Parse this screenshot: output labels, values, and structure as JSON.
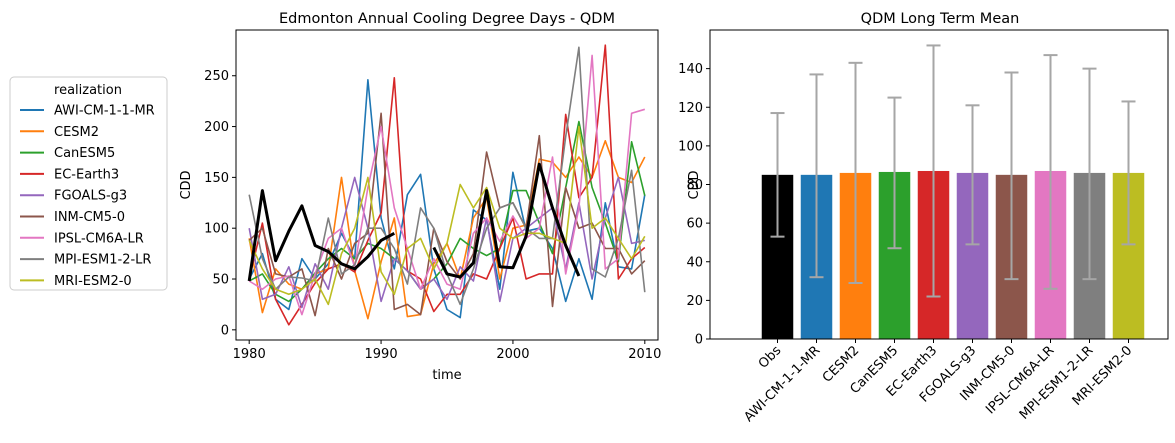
{
  "chart_data": [
    {
      "type": "line",
      "title": "Edmonton Annual Cooling Degree Days - QDM",
      "xlabel": "time",
      "ylabel": "CDD",
      "xlim": [
        1979,
        2011
      ],
      "ylim": [
        -10,
        295
      ],
      "xticks": [
        1980,
        1990,
        2000,
        2010
      ],
      "yticks": [
        0,
        50,
        100,
        150,
        200,
        250
      ],
      "legend": {
        "title": "realization",
        "placement": "left, outside plot"
      },
      "x": [
        1980,
        1981,
        1982,
        1983,
        1984,
        1985,
        1986,
        1987,
        1988,
        1989,
        1990,
        1991,
        1992,
        1993,
        1994,
        1995,
        1996,
        1997,
        1998,
        1999,
        2000,
        2001,
        2002,
        2003,
        2004,
        2005,
        2006,
        2007,
        2008,
        2009,
        2010
      ],
      "observed": {
        "color": "#000000",
        "values": [
          48,
          137,
          68,
          97,
          122,
          83,
          77,
          65,
          60,
          72,
          88,
          95,
          null,
          null,
          81,
          55,
          52,
          66,
          137,
          62,
          61,
          92,
          163,
          120,
          83,
          53,
          null,
          null,
          null,
          null,
          null
        ]
      },
      "series": [
        {
          "name": "AWI-CM-1-1-MR",
          "color": "#1f77b4",
          "values": [
            50,
            75,
            30,
            20,
            70,
            50,
            65,
            95,
            70,
            246,
            110,
            60,
            133,
            153,
            60,
            20,
            12,
            118,
            108,
            40,
            155,
            97,
            100,
            80,
            28,
            70,
            30,
            125,
            62,
            60,
            133
          ]
        },
        {
          "name": "CESM2",
          "color": "#ff7f0e",
          "values": [
            90,
            17,
            60,
            45,
            40,
            55,
            60,
            150,
            58,
            11,
            67,
            110,
            13,
            15,
            65,
            85,
            50,
            110,
            130,
            50,
            100,
            103,
            168,
            165,
            150,
            170,
            150,
            186,
            150,
            145,
            170
          ]
        },
        {
          "name": "CanESM5",
          "color": "#2ca02c",
          "values": [
            48,
            55,
            35,
            28,
            40,
            56,
            70,
            80,
            70,
            85,
            80,
            70,
            58,
            40,
            50,
            65,
            90,
            80,
            73,
            80,
            137,
            137,
            105,
            75,
            140,
            205,
            140,
            105,
            67,
            185,
            132
          ]
        },
        {
          "name": "EC-Earth3",
          "color": "#d62728",
          "values": [
            50,
            105,
            30,
            5,
            25,
            46,
            60,
            65,
            57,
            88,
            115,
            248,
            58,
            50,
            18,
            35,
            35,
            55,
            50,
            80,
            110,
            50,
            55,
            55,
            212,
            130,
            150,
            280,
            50,
            70,
            81
          ]
        },
        {
          "name": "FGOALS-g3",
          "color": "#9467bd",
          "values": [
            100,
            30,
            35,
            62,
            22,
            65,
            40,
            100,
            150,
            100,
            28,
            70,
            58,
            40,
            50,
            30,
            62,
            48,
            110,
            28,
            90,
            100,
            110,
            120,
            60,
            125,
            50,
            110,
            150,
            85,
            88
          ]
        },
        {
          "name": "INM-CM5-0",
          "color": "#8c564b",
          "values": [
            88,
            100,
            55,
            52,
            60,
            14,
            80,
            50,
            85,
            95,
            213,
            20,
            25,
            15,
            100,
            67,
            50,
            75,
            175,
            120,
            125,
            100,
            191,
            23,
            140,
            100,
            105,
            80,
            80,
            55,
            68
          ]
        },
        {
          "name": "IPSL-CM6A-LR",
          "color": "#e377c2",
          "values": [
            48,
            40,
            50,
            53,
            15,
            55,
            90,
            100,
            62,
            140,
            200,
            120,
            80,
            40,
            70,
            45,
            40,
            95,
            110,
            87,
            112,
            90,
            100,
            170,
            55,
            120,
            270,
            60,
            70,
            213,
            217
          ]
        },
        {
          "name": "MPI-ESM1-2-LR",
          "color": "#7f7f7f",
          "values": [
            133,
            70,
            40,
            52,
            51,
            48,
            110,
            55,
            64,
            100,
            100,
            80,
            45,
            120,
            100,
            55,
            25,
            60,
            100,
            120,
            125,
            100,
            90,
            90,
            190,
            278,
            60,
            52,
            90,
            157,
            37
          ]
        },
        {
          "name": "MRI-ESM2-0",
          "color": "#bcbd22",
          "values": [
            88,
            60,
            40,
            35,
            40,
            50,
            25,
            75,
            100,
            150,
            57,
            35,
            80,
            90,
            60,
            85,
            143,
            120,
            140,
            100,
            90,
            95,
            95,
            90,
            85,
            200,
            100,
            110,
            90,
            70,
            92
          ]
        }
      ]
    },
    {
      "type": "bar",
      "title": "QDM Long Term Mean",
      "xlabel": "",
      "ylabel": "CDD",
      "ylim": [
        0,
        160
      ],
      "yticks": [
        0,
        20,
        40,
        60,
        80,
        100,
        120,
        140
      ],
      "categories": [
        "Obs",
        "AWI-CM-1-1-MR",
        "CESM2",
        "CanESM5",
        "EC-Earth3",
        "FGOALS-g3",
        "INM-CM5-0",
        "IPSL-CM6A-LR",
        "MPI-ESM1-2-LR",
        "MRI-ESM2-0"
      ],
      "values": [
        85,
        85,
        86,
        86.5,
        87,
        86,
        85,
        87,
        86,
        86
      ],
      "error_low": [
        53,
        32,
        29,
        47,
        22,
        49,
        31,
        26,
        31,
        49
      ],
      "error_high": [
        117,
        137,
        143,
        125,
        152,
        121,
        138,
        147,
        140,
        123
      ],
      "colors": [
        "#000000",
        "#1f77b4",
        "#ff7f0e",
        "#2ca02c",
        "#d62728",
        "#9467bd",
        "#8c564b",
        "#e377c2",
        "#7f7f7f",
        "#bcbd22"
      ],
      "error_color": "#a6a6a6"
    }
  ]
}
